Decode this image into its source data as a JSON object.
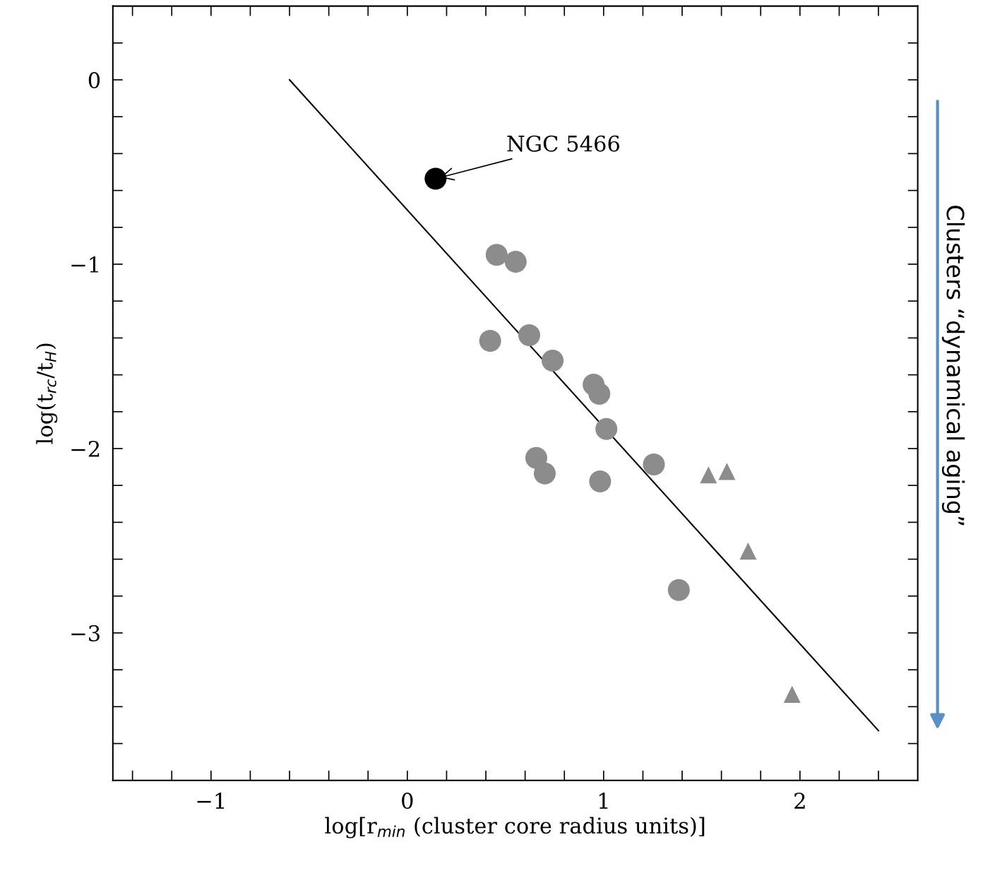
{
  "chart_data": {
    "type": "scatter",
    "xlabel": "log[r$_{min}$ (cluster core radius units)]",
    "ylabel": "log(t$_{rc}$/t$_{H}$)",
    "xlim": [
      -1.5,
      2.6
    ],
    "ylim": [
      -3.8,
      0.4
    ],
    "xticks": [
      {
        "value": -1.4,
        "label": null
      },
      {
        "value": -1.2,
        "label": null
      },
      {
        "value": -1,
        "label": "−1"
      },
      {
        "value": -0.8,
        "label": null
      },
      {
        "value": -0.6,
        "label": null
      },
      {
        "value": -0.4,
        "label": null
      },
      {
        "value": -0.2,
        "label": null
      },
      0,
      {
        "value": 0.2,
        "label": null
      },
      {
        "value": 0.4,
        "label": null
      },
      {
        "value": 0.6,
        "label": null
      },
      {
        "value": 0.8,
        "label": null
      },
      1,
      {
        "value": 1.2,
        "label": null
      },
      {
        "value": 1.4,
        "label": null
      },
      {
        "value": 1.6,
        "label": null
      },
      {
        "value": 1.8,
        "label": null
      },
      2,
      {
        "value": 2.2,
        "label": null
      },
      {
        "value": 2.4,
        "label": null
      }
    ],
    "yticks": [
      {
        "value": -3.6,
        "label": null
      },
      {
        "value": -3.4,
        "label": null
      },
      {
        "value": -3.2,
        "label": null
      },
      {
        "value": -3,
        "label": "−3"
      },
      {
        "value": -2.8,
        "label": null
      },
      {
        "value": -2.6,
        "label": null
      },
      {
        "value": -2.4,
        "label": null
      },
      {
        "value": -2.2,
        "label": null
      },
      {
        "value": -2,
        "label": "−2"
      },
      {
        "value": -1.8,
        "label": null
      },
      {
        "value": -1.6,
        "label": null
      },
      {
        "value": -1.4,
        "label": null
      },
      {
        "value": -1.2,
        "label": null
      },
      {
        "value": -1,
        "label": "−1"
      },
      {
        "value": -0.8,
        "label": null
      },
      {
        "value": -0.6,
        "label": null
      },
      {
        "value": -0.4,
        "label": null
      },
      {
        "value": -0.2,
        "label": null
      },
      0,
      {
        "value": 0.2,
        "label": null
      }
    ],
    "grid": false,
    "legend": false,
    "series": [
      {
        "type": "line",
        "color": "#000000",
        "marker": "none",
        "x": [
          -0.6,
          2.4
        ],
        "values": [
          0,
          -3.53
        ]
      },
      {
        "color": "#8c8c8c",
        "marker": "circle",
        "x": [
          0.455,
          0.552,
          0.422,
          0.621,
          0.74,
          0.949,
          0.978,
          1.014,
          0.657,
          0.7,
          0.982,
          1.256,
          1.383
        ],
        "values": [
          -0.949,
          -0.987,
          -1.416,
          -1.385,
          -1.523,
          -1.653,
          -1.703,
          -1.894,
          -2.051,
          -2.135,
          -2.178,
          -2.086,
          -2.767
        ]
      },
      {
        "color": "#8c8c8c",
        "marker": "triangle",
        "x": [
          1.534,
          1.628,
          1.736,
          1.96
        ],
        "values": [
          -2.143,
          -2.124,
          -2.556,
          -3.333
        ]
      },
      {
        "color": "#000000",
        "marker": "circle",
        "x": [
          0.144
        ],
        "values": [
          -0.536
        ]
      }
    ],
    "annotations": [
      {
        "text": "NGC 5466",
        "x": 0.144,
        "y": -0.536
      },
      "Clusters “dynamical aging”"
    ]
  }
}
